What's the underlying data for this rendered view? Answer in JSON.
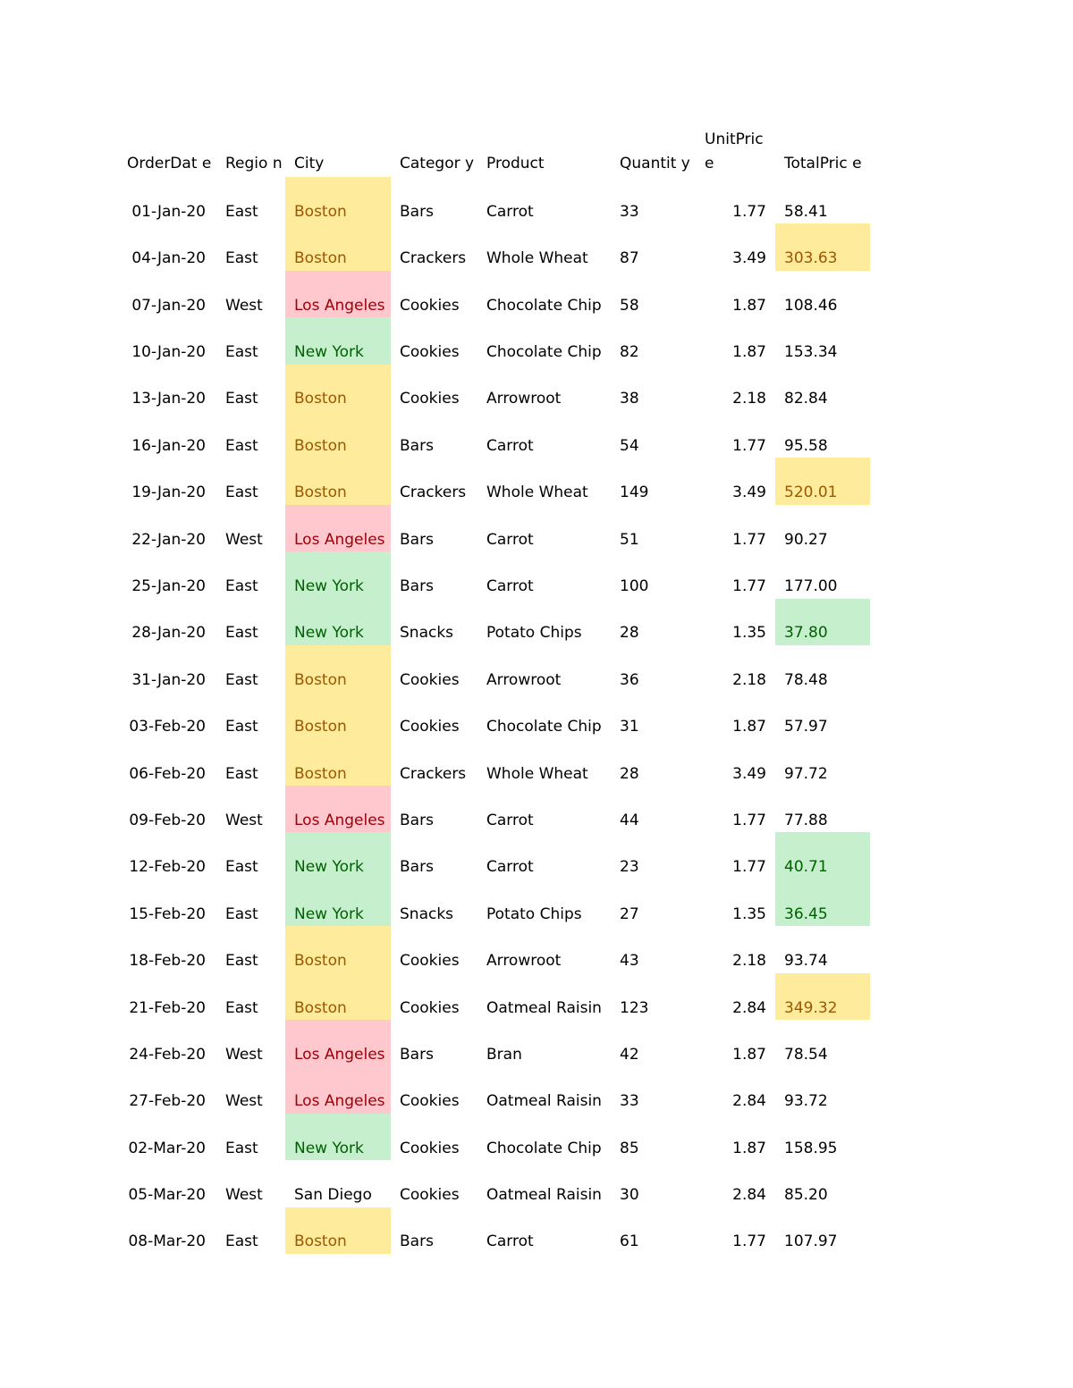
{
  "colors": {
    "yellow_fill": "#ffeb9c",
    "yellow_text": "#9c5700",
    "red_fill": "#ffc7ce",
    "red_text": "#9c0006",
    "green_fill": "#c6efce",
    "green_text": "#006100"
  },
  "table": {
    "headers": {
      "order_date": "OrderDat e",
      "region": "Regio n",
      "city": "City",
      "category": "Categor y",
      "product": "Product",
      "quantity": "Quantit y",
      "unit_price": "UnitPric e",
      "total_price": "TotalPric e"
    },
    "rows": [
      {
        "order_date": "01-Jan-20",
        "region": "East",
        "city": "Boston",
        "category": "Bars",
        "product": "Carrot",
        "quantity": "33",
        "unit_price": "1.77",
        "total_price": "58.41",
        "city_hl": "yellow",
        "total_hl": ""
      },
      {
        "order_date": "04-Jan-20",
        "region": "East",
        "city": "Boston",
        "category": "Crackers",
        "product": "Whole Wheat",
        "quantity": "87",
        "unit_price": "3.49",
        "total_price": "303.63",
        "city_hl": "yellow",
        "total_hl": "yellow"
      },
      {
        "order_date": "07-Jan-20",
        "region": "West",
        "city": "Los Angeles",
        "category": "Cookies",
        "product": "Chocolate Chip",
        "quantity": "58",
        "unit_price": "1.87",
        "total_price": "108.46",
        "city_hl": "red",
        "total_hl": ""
      },
      {
        "order_date": "10-Jan-20",
        "region": "East",
        "city": "New York",
        "category": "Cookies",
        "product": "Chocolate Chip",
        "quantity": "82",
        "unit_price": "1.87",
        "total_price": "153.34",
        "city_hl": "green",
        "total_hl": ""
      },
      {
        "order_date": "13-Jan-20",
        "region": "East",
        "city": "Boston",
        "category": "Cookies",
        "product": "Arrowroot",
        "quantity": "38",
        "unit_price": "2.18",
        "total_price": "82.84",
        "city_hl": "yellow",
        "total_hl": ""
      },
      {
        "order_date": "16-Jan-20",
        "region": "East",
        "city": "Boston",
        "category": "Bars",
        "product": "Carrot",
        "quantity": "54",
        "unit_price": "1.77",
        "total_price": "95.58",
        "city_hl": "yellow",
        "total_hl": ""
      },
      {
        "order_date": "19-Jan-20",
        "region": "East",
        "city": "Boston",
        "category": "Crackers",
        "product": "Whole Wheat",
        "quantity": "149",
        "unit_price": "3.49",
        "total_price": "520.01",
        "city_hl": "yellow",
        "total_hl": "yellow"
      },
      {
        "order_date": "22-Jan-20",
        "region": "West",
        "city": "Los Angeles",
        "category": "Bars",
        "product": "Carrot",
        "quantity": "51",
        "unit_price": "1.77",
        "total_price": "90.27",
        "city_hl": "red",
        "total_hl": ""
      },
      {
        "order_date": "25-Jan-20",
        "region": "East",
        "city": "New York",
        "category": "Bars",
        "product": "Carrot",
        "quantity": "100",
        "unit_price": "1.77",
        "total_price": "177.00",
        "city_hl": "green",
        "total_hl": ""
      },
      {
        "order_date": "28-Jan-20",
        "region": "East",
        "city": "New York",
        "category": "Snacks",
        "product": "Potato Chips",
        "quantity": "28",
        "unit_price": "1.35",
        "total_price": "37.80",
        "city_hl": "green",
        "total_hl": "green"
      },
      {
        "order_date": "31-Jan-20",
        "region": "East",
        "city": "Boston",
        "category": "Cookies",
        "product": "Arrowroot",
        "quantity": "36",
        "unit_price": "2.18",
        "total_price": "78.48",
        "city_hl": "yellow",
        "total_hl": ""
      },
      {
        "order_date": "03-Feb-20",
        "region": "East",
        "city": "Boston",
        "category": "Cookies",
        "product": "Chocolate Chip",
        "quantity": "31",
        "unit_price": "1.87",
        "total_price": "57.97",
        "city_hl": "yellow",
        "total_hl": ""
      },
      {
        "order_date": "06-Feb-20",
        "region": "East",
        "city": "Boston",
        "category": "Crackers",
        "product": "Whole Wheat",
        "quantity": "28",
        "unit_price": "3.49",
        "total_price": "97.72",
        "city_hl": "yellow",
        "total_hl": ""
      },
      {
        "order_date": "09-Feb-20",
        "region": "West",
        "city": "Los Angeles",
        "category": "Bars",
        "product": "Carrot",
        "quantity": "44",
        "unit_price": "1.77",
        "total_price": "77.88",
        "city_hl": "red",
        "total_hl": ""
      },
      {
        "order_date": "12-Feb-20",
        "region": "East",
        "city": "New York",
        "category": "Bars",
        "product": "Carrot",
        "quantity": "23",
        "unit_price": "1.77",
        "total_price": "40.71",
        "city_hl": "green",
        "total_hl": "green"
      },
      {
        "order_date": "15-Feb-20",
        "region": "East",
        "city": "New York",
        "category": "Snacks",
        "product": "Potato Chips",
        "quantity": "27",
        "unit_price": "1.35",
        "total_price": "36.45",
        "city_hl": "green",
        "total_hl": "green"
      },
      {
        "order_date": "18-Feb-20",
        "region": "East",
        "city": "Boston",
        "category": "Cookies",
        "product": "Arrowroot",
        "quantity": "43",
        "unit_price": "2.18",
        "total_price": "93.74",
        "city_hl": "yellow",
        "total_hl": ""
      },
      {
        "order_date": "21-Feb-20",
        "region": "East",
        "city": "Boston",
        "category": "Cookies",
        "product": "Oatmeal Raisin",
        "quantity": "123",
        "unit_price": "2.84",
        "total_price": "349.32",
        "city_hl": "yellow",
        "total_hl": "yellow"
      },
      {
        "order_date": "24-Feb-20",
        "region": "West",
        "city": "Los Angeles",
        "category": "Bars",
        "product": "Bran",
        "quantity": "42",
        "unit_price": "1.87",
        "total_price": "78.54",
        "city_hl": "red",
        "total_hl": ""
      },
      {
        "order_date": "27-Feb-20",
        "region": "West",
        "city": "Los Angeles",
        "category": "Cookies",
        "product": "Oatmeal Raisin",
        "quantity": "33",
        "unit_price": "2.84",
        "total_price": "93.72",
        "city_hl": "red",
        "total_hl": ""
      },
      {
        "order_date": "02-Mar-20",
        "region": "East",
        "city": "New York",
        "category": "Cookies",
        "product": "Chocolate Chip",
        "quantity": "85",
        "unit_price": "1.87",
        "total_price": "158.95",
        "city_hl": "green",
        "total_hl": ""
      },
      {
        "order_date": "05-Mar-20",
        "region": "West",
        "city": "San Diego",
        "category": "Cookies",
        "product": "Oatmeal Raisin",
        "quantity": "30",
        "unit_price": "2.84",
        "total_price": "85.20",
        "city_hl": "",
        "total_hl": ""
      },
      {
        "order_date": "08-Mar-20",
        "region": "East",
        "city": "Boston",
        "category": "Bars",
        "product": "Carrot",
        "quantity": "61",
        "unit_price": "1.77",
        "total_price": "107.97",
        "city_hl": "yellow",
        "total_hl": ""
      }
    ]
  }
}
